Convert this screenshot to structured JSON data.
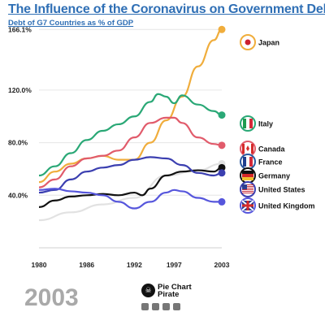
{
  "header": {
    "title": "The Influence of the Coronavirus on Government Debt",
    "subtitle": "Debt of G7 Countries as % of GDP"
  },
  "year_display": "2003",
  "brand": {
    "name_line1": "Pie Chart",
    "name_line2": "Pirate",
    "social_icons": [
      "youtube-icon",
      "facebook-icon",
      "reddit-icon",
      "instagram-icon"
    ]
  },
  "chart_data": {
    "type": "line",
    "title": "The Influence of the Coronavirus on Government Debt",
    "subtitle": "Debt of G7 Countries as % of GDP",
    "x_ticks": [
      "1980",
      "1986",
      "1992",
      "1997",
      "2003"
    ],
    "y_ticks": [
      "40.0%",
      "80.0%",
      "120.0%",
      "166.1%"
    ],
    "xlim": [
      1980,
      2003
    ],
    "ylim": [
      0,
      170
    ],
    "grid": true,
    "current_year": 2003,
    "series": [
      {
        "name": "Japan",
        "color": "#f0ad3c",
        "x": [
          1980,
          1982,
          1984,
          1986,
          1988,
          1990,
          1992,
          1994,
          1996,
          1998,
          2000,
          2002,
          2003
        ],
        "y": [
          50,
          58,
          64,
          68,
          70,
          67,
          67,
          80,
          97,
          115,
          138,
          158,
          166.1
        ]
      },
      {
        "name": "Italy",
        "color": "#2aa876",
        "x": [
          1980,
          1982,
          1984,
          1986,
          1988,
          1990,
          1992,
          1994,
          1995,
          1996,
          1997,
          1998,
          2000,
          2002,
          2003
        ],
        "y": [
          55,
          62,
          72,
          82,
          89,
          94,
          100,
          111,
          117,
          115,
          110,
          116,
          109,
          104,
          101
        ]
      },
      {
        "name": "Canada",
        "color": "#e15b6b",
        "x": [
          1980,
          1982,
          1984,
          1986,
          1988,
          1990,
          1992,
          1994,
          1996,
          1997,
          1998,
          2000,
          2002,
          2003
        ],
        "y": [
          46,
          52,
          62,
          68,
          70,
          74,
          84,
          95,
          99,
          99,
          95,
          84,
          79,
          78
        ]
      },
      {
        "name": "France",
        "color": "#e2e2e2",
        "x": [
          1980,
          1984,
          1988,
          1992,
          1996,
          2000,
          2003
        ],
        "y": [
          21,
          27,
          33,
          38,
          55,
          59,
          64
        ]
      },
      {
        "name": "Germany",
        "color": "#111111",
        "x": [
          1980,
          1982,
          1984,
          1986,
          1988,
          1990,
          1992,
          1993,
          1994,
          1996,
          1998,
          2000,
          2002,
          2003
        ],
        "y": [
          31,
          36,
          39,
          40,
          41,
          40,
          42,
          40,
          45,
          55,
          58,
          59,
          58,
          61
        ]
      },
      {
        "name": "United States",
        "color": "#3b3fb0",
        "x": [
          1980,
          1982,
          1984,
          1986,
          1988,
          1990,
          1992,
          1994,
          1996,
          1998,
          2000,
          2002,
          2003
        ],
        "y": [
          42,
          44,
          52,
          58,
          61,
          63,
          67,
          69,
          68,
          63,
          57,
          55,
          57
        ]
      },
      {
        "name": "United Kingdom",
        "color": "#5656dc",
        "x": [
          1980,
          1982,
          1984,
          1986,
          1988,
          1990,
          1992,
          1994,
          1996,
          1997,
          1998,
          2000,
          2002,
          2003
        ],
        "y": [
          44,
          45,
          43,
          42,
          40,
          35,
          30,
          35,
          42,
          44,
          43,
          38,
          35,
          35
        ]
      }
    ]
  }
}
